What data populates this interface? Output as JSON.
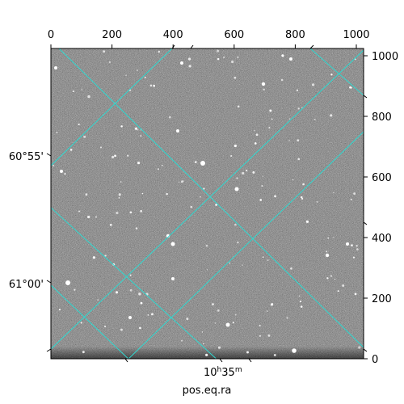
{
  "figure": {
    "xlabel": "pos.eq.ra",
    "ra_tick_label_main": "10",
    "ra_tick_label_h": "h",
    "ra_tick_label_rest": "35",
    "ra_tick_label_m": "m",
    "dec_tick_labels": [
      "60°55'",
      "61°00'"
    ],
    "pixel_x_ticks": [
      "0",
      "200",
      "400",
      "600",
      "800",
      "1000"
    ],
    "pixel_y_ticks": [
      "0",
      "200",
      "400",
      "600",
      "800",
      "1000"
    ],
    "grid_color": "#2fd8d0",
    "image_style": "grayscale noise star field"
  }
}
